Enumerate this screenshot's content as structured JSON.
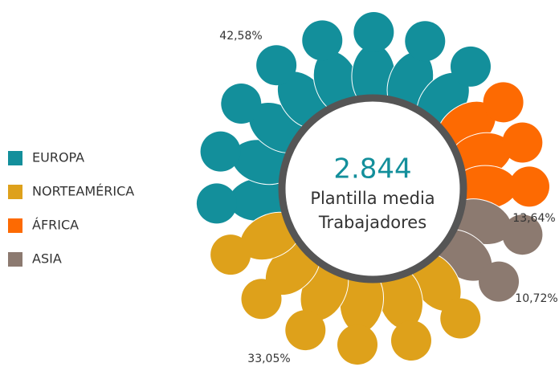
{
  "chart_data": {
    "type": "pie",
    "categories": [
      "EUROPA",
      "NORTEAMÉRICA",
      "ÁFRICA",
      "ASIA"
    ],
    "values": [
      42.58,
      33.05,
      13.64,
      10.72
    ],
    "value_labels": [
      "42,58%",
      "33,05%",
      "13,64%",
      "10,72%"
    ],
    "colors": [
      "#138f9b",
      "#dea11b",
      "#fd6a02",
      "#8c7a70"
    ],
    "center_value": "2.844",
    "center_lines": [
      "Plantilla media",
      "Trabajadores"
    ],
    "legend": "left"
  }
}
